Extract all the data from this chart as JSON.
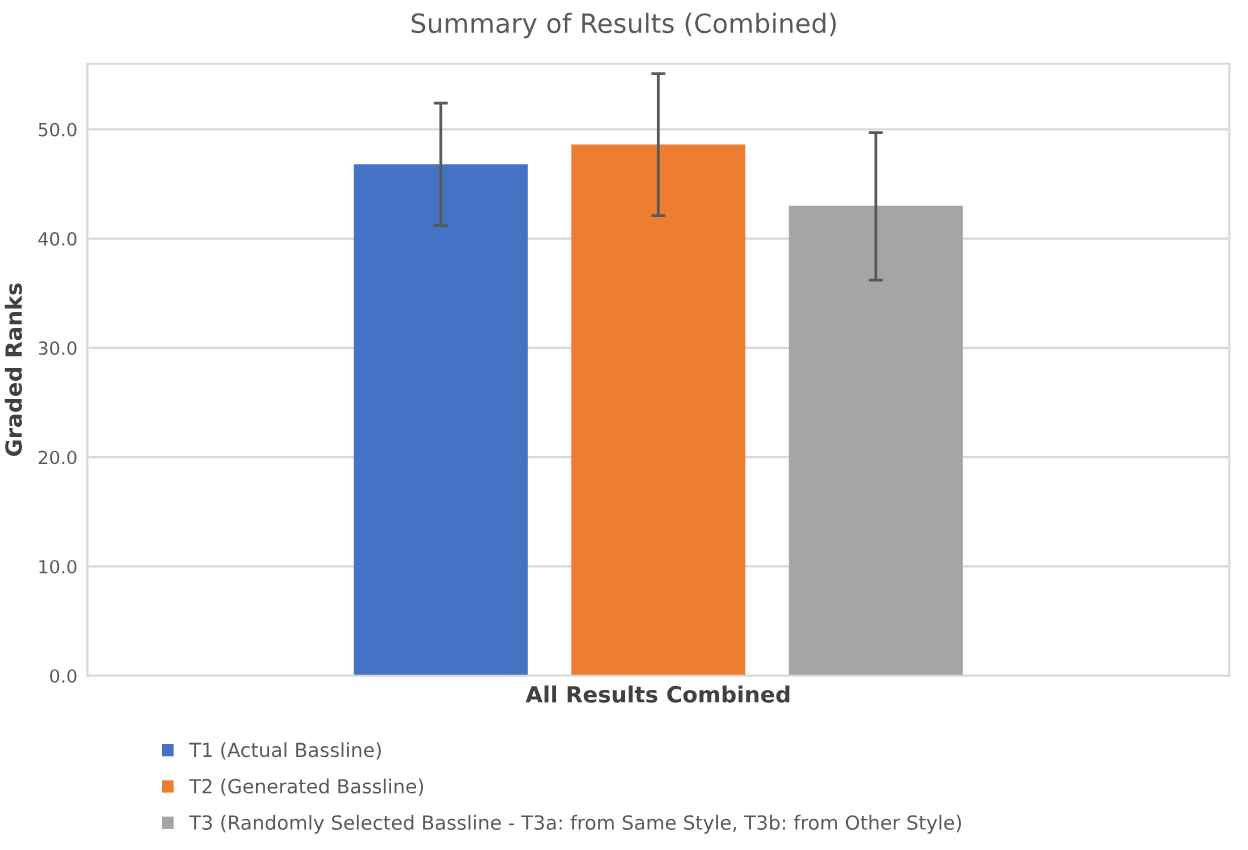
{
  "chart_data": {
    "type": "bar",
    "title": "Summary of Results (Combined)",
    "ylabel": "Graded Ranks",
    "categories": [
      "All Results Combined"
    ],
    "series": [
      {
        "name": "T1 (Actual Bassline)",
        "color": "#4472c4",
        "values": [
          46.8
        ],
        "errors": [
          [
            41.2,
            52.4
          ]
        ]
      },
      {
        "name": "T2 (Generated Bassline)",
        "color": "#ed7d31",
        "values": [
          48.6
        ],
        "errors": [
          [
            42.1,
            55.1
          ]
        ]
      },
      {
        "name": "T3 (Randomly Selected Bassline - T3a: from Same Style, T3b: from Other Style)",
        "color": "#a5a5a5",
        "values": [
          43.0
        ],
        "errors": [
          [
            36.2,
            49.7
          ]
        ]
      }
    ],
    "ylim": [
      0,
      56
    ],
    "yticks": [
      {
        "value": 0,
        "label": "0.0"
      },
      {
        "value": 10,
        "label": "10.0"
      },
      {
        "value": 20,
        "label": "20.0"
      },
      {
        "value": 30,
        "label": "30.0"
      },
      {
        "value": 40,
        "label": "40.0"
      },
      {
        "value": 50,
        "label": "50.0"
      }
    ],
    "grid": "y",
    "legend": "bottom"
  }
}
